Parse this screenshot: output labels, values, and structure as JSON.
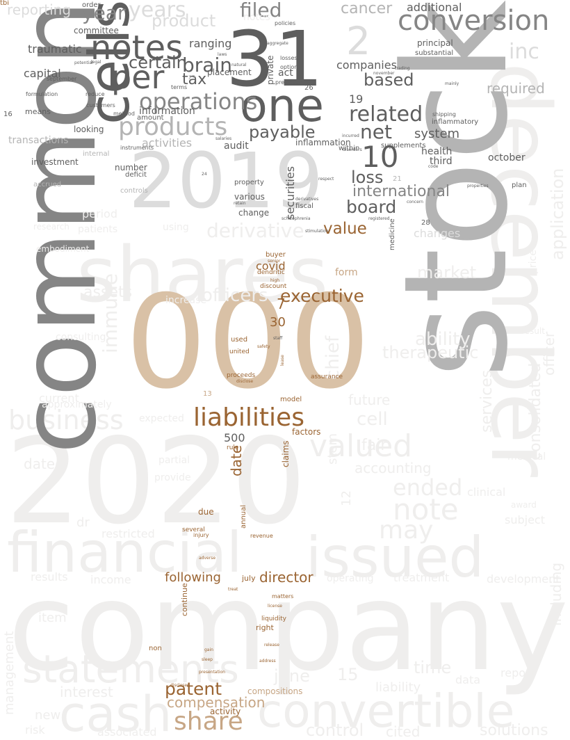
{
  "palette": {
    "background": "#ffffff",
    "faint": "#efeeed",
    "light": "#dcdcdc",
    "mid": "#b4b4b4",
    "dark": "#858585",
    "darker": "#5e5e5e",
    "tan": "#d9c1a6",
    "brown": "#9a6432",
    "light_brown": "#c7a685"
  },
  "words": [
    {
      "text": "company",
      "tone": "faint"
    },
    {
      "text": "2020",
      "tone": "faint"
    },
    {
      "text": "financial",
      "tone": "faint"
    },
    {
      "text": "issued",
      "tone": "faint"
    },
    {
      "text": "convertible",
      "tone": "faint"
    },
    {
      "text": "cash",
      "tone": "faint"
    },
    {
      "text": "statements",
      "tone": "faint"
    },
    {
      "text": "business",
      "tone": "faint"
    },
    {
      "text": "shares",
      "tone": "faint"
    },
    {
      "text": "december",
      "tone": "faint"
    },
    {
      "text": "stock",
      "tone": "mid"
    },
    {
      "text": "common",
      "tone": "dark"
    },
    {
      "text": "000",
      "tone": "tan"
    },
    {
      "text": "2019",
      "tone": "light"
    },
    {
      "text": "31",
      "tone": "darker"
    },
    {
      "text": "one",
      "tone": "darker"
    },
    {
      "text": "cells",
      "tone": "darker"
    },
    {
      "text": "notes",
      "tone": "darker"
    },
    {
      "text": "per",
      "tone": "darker"
    },
    {
      "text": "conversion",
      "tone": "dark"
    },
    {
      "text": "products",
      "tone": "mid"
    },
    {
      "text": "operations",
      "tone": "dark"
    },
    {
      "text": "brain",
      "tone": "darker"
    },
    {
      "text": "certain",
      "tone": "darker"
    },
    {
      "text": "tax",
      "tone": "darker"
    },
    {
      "text": "payable",
      "tone": "darker"
    },
    {
      "text": "related",
      "tone": "darker"
    },
    {
      "text": "10",
      "tone": "darker"
    },
    {
      "text": "net",
      "tone": "darker"
    },
    {
      "text": "loss",
      "tone": "darker"
    },
    {
      "text": "board",
      "tone": "darker"
    },
    {
      "text": "value",
      "tone": "brown"
    },
    {
      "text": "liabilities",
      "tone": "brown"
    },
    {
      "text": "executive",
      "tone": "brown"
    },
    {
      "text": "patent",
      "tone": "brown"
    },
    {
      "text": "director",
      "tone": "brown"
    },
    {
      "text": "share",
      "tone": "light_brown"
    },
    {
      "text": "compensation",
      "tone": "light_brown"
    },
    {
      "text": "following",
      "tone": "brown"
    },
    {
      "text": "date",
      "tone": "brown"
    },
    {
      "text": "500",
      "tone": "darker"
    },
    {
      "text": "covid",
      "tone": "brown"
    },
    {
      "text": "30",
      "tone": "brown"
    },
    {
      "text": "7",
      "tone": "brown"
    },
    {
      "text": "system",
      "tone": "darker"
    },
    {
      "text": "companies",
      "tone": "darker"
    },
    {
      "text": "based",
      "tone": "darker"
    },
    {
      "text": "international",
      "tone": "dark"
    },
    {
      "text": "securities",
      "tone": "darker"
    },
    {
      "text": "filed",
      "tone": "dark"
    },
    {
      "text": "cancer",
      "tone": "mid"
    },
    {
      "text": "notes",
      "tone": "faint"
    },
    {
      "text": "2",
      "tone": "light"
    },
    {
      "text": "inc",
      "tone": "light"
    },
    {
      "text": "required",
      "tone": "mid"
    },
    {
      "text": "october",
      "tone": "darker"
    },
    {
      "text": "health",
      "tone": "darker"
    },
    {
      "text": "third",
      "tone": "darker"
    },
    {
      "text": "19",
      "tone": "darker"
    },
    {
      "text": "traumatic",
      "tone": "darker"
    },
    {
      "text": "capital",
      "tone": "darker"
    },
    {
      "text": "year",
      "tone": "dark"
    },
    {
      "text": "years",
      "tone": "light"
    },
    {
      "text": "product",
      "tone": "light"
    },
    {
      "text": "ranging",
      "tone": "darker"
    },
    {
      "text": "placement",
      "tone": "darker"
    },
    {
      "text": "act",
      "tone": "darker"
    },
    {
      "text": "information",
      "tone": "darker"
    },
    {
      "text": "activities",
      "tone": "mid"
    },
    {
      "text": "audit",
      "tone": "darker"
    },
    {
      "text": "inflammation",
      "tone": "darker"
    },
    {
      "text": "various",
      "tone": "darker"
    },
    {
      "text": "change",
      "tone": "darker"
    },
    {
      "text": "property",
      "tone": "darker"
    },
    {
      "text": "number",
      "tone": "darker"
    },
    {
      "text": "investment",
      "tone": "darker"
    },
    {
      "text": "transactions",
      "tone": "mid"
    },
    {
      "text": "looking",
      "tone": "darker"
    },
    {
      "text": "means",
      "tone": "darker"
    },
    {
      "text": "committee",
      "tone": "darker"
    },
    {
      "text": "principal",
      "tone": "darker"
    },
    {
      "text": "additional",
      "tone": "darker"
    },
    {
      "text": "reporting",
      "tone": "light"
    },
    {
      "text": "derivative",
      "tone": "faint"
    },
    {
      "text": "immune",
      "tone": "faint"
    },
    {
      "text": "chief",
      "tone": "faint"
    },
    {
      "text": "officers",
      "tone": "faint"
    },
    {
      "text": "market",
      "tone": "faint"
    },
    {
      "text": "assets",
      "tone": "faint"
    },
    {
      "text": "valued",
      "tone": "faint"
    },
    {
      "text": "note",
      "tone": "faint"
    },
    {
      "text": "ended",
      "tone": "faint"
    },
    {
      "text": "may",
      "tone": "faint"
    },
    {
      "text": "therapeutic",
      "tone": "faint"
    },
    {
      "text": "ability",
      "tone": "faint"
    },
    {
      "text": "fair",
      "tone": "faint"
    },
    {
      "text": "cell",
      "tone": "faint"
    },
    {
      "text": "future",
      "tone": "faint"
    },
    {
      "text": "accounting",
      "tone": "faint"
    },
    {
      "text": "claims",
      "tone": "brown"
    },
    {
      "text": "factors",
      "tone": "brown"
    },
    {
      "text": "model",
      "tone": "brown"
    },
    {
      "text": "used",
      "tone": "brown"
    },
    {
      "text": "united",
      "tone": "brown"
    },
    {
      "text": "proceeds",
      "tone": "brown"
    },
    {
      "text": "assurance",
      "tone": "brown"
    },
    {
      "text": "form",
      "tone": "light_brown"
    },
    {
      "text": "buyer",
      "tone": "brown"
    },
    {
      "text": "dendritic",
      "tone": "brown"
    },
    {
      "text": "discount",
      "tone": "brown"
    },
    {
      "text": "due",
      "tone": "brown"
    },
    {
      "text": "several",
      "tone": "brown"
    },
    {
      "text": "injury",
      "tone": "brown"
    },
    {
      "text": "annual",
      "tone": "brown"
    },
    {
      "text": "july",
      "tone": "brown"
    },
    {
      "text": "continue",
      "tone": "brown"
    },
    {
      "text": "right",
      "tone": "brown"
    },
    {
      "text": "non",
      "tone": "brown"
    },
    {
      "text": "activity",
      "tone": "brown"
    },
    {
      "text": "compositions",
      "tone": "light_brown"
    },
    {
      "text": "liquidity",
      "tone": "brown"
    },
    {
      "text": "matters",
      "tone": "brown"
    },
    {
      "text": "revenue",
      "tone": "brown"
    },
    {
      "text": "adverse",
      "tone": "brown"
    },
    {
      "text": "rule",
      "tone": "brown"
    },
    {
      "text": "13",
      "tone": "light_brown"
    },
    {
      "text": "services",
      "tone": "faint"
    },
    {
      "text": "consolidated",
      "tone": "faint"
    },
    {
      "text": "officer",
      "tone": "faint"
    },
    {
      "text": "application",
      "tone": "faint"
    },
    {
      "text": "including",
      "tone": "faint"
    },
    {
      "text": "management",
      "tone": "faint"
    },
    {
      "text": "interest",
      "tone": "faint"
    },
    {
      "text": "new",
      "tone": "faint"
    },
    {
      "text": "risk",
      "tone": "faint"
    },
    {
      "text": "associated",
      "tone": "faint"
    },
    {
      "text": "control",
      "tone": "faint"
    },
    {
      "text": "cited",
      "tone": "faint"
    },
    {
      "text": "solutions",
      "tone": "faint"
    },
    {
      "text": "june",
      "tone": "faint"
    },
    {
      "text": "15",
      "tone": "faint"
    },
    {
      "text": "time",
      "tone": "faint"
    },
    {
      "text": "liability",
      "tone": "faint"
    },
    {
      "text": "data",
      "tone": "faint"
    },
    {
      "text": "report",
      "tone": "faint"
    },
    {
      "text": "results",
      "tone": "faint"
    },
    {
      "text": "income",
      "tone": "faint"
    },
    {
      "text": "item",
      "tone": "faint"
    },
    {
      "text": "restricted",
      "tone": "faint"
    },
    {
      "text": "dated",
      "tone": "faint"
    },
    {
      "text": "dr",
      "tone": "faint"
    },
    {
      "text": "provide",
      "tone": "faint"
    },
    {
      "text": "partial",
      "tone": "faint"
    },
    {
      "text": "subject",
      "tone": "faint"
    },
    {
      "text": "clinical",
      "tone": "faint"
    },
    {
      "text": "treatment",
      "tone": "faint"
    },
    {
      "text": "development",
      "tone": "faint"
    },
    {
      "text": "operating",
      "tone": "faint"
    },
    {
      "text": "expected",
      "tone": "faint"
    },
    {
      "text": "current",
      "tone": "faint"
    },
    {
      "text": "approximately",
      "tone": "faint"
    },
    {
      "text": "consulting",
      "tone": "faint"
    },
    {
      "text": "increase",
      "tone": "faint"
    },
    {
      "text": "patients",
      "tone": "faint"
    },
    {
      "text": "period",
      "tone": "faint"
    },
    {
      "text": "using",
      "tone": "faint"
    },
    {
      "text": "research",
      "tone": "faint"
    },
    {
      "text": "embodiment",
      "tone": "faint"
    },
    {
      "text": "stem",
      "tone": "faint"
    },
    {
      "text": "12",
      "tone": "faint"
    },
    {
      "text": "medical",
      "tone": "faint"
    },
    {
      "text": "award",
      "tone": "faint"
    },
    {
      "text": "result",
      "tone": "faint"
    },
    {
      "text": "price",
      "tone": "faint"
    },
    {
      "text": "plan",
      "tone": "darker"
    },
    {
      "text": "28",
      "tone": "darker"
    },
    {
      "text": "changes",
      "tone": "light"
    },
    {
      "text": "medicine",
      "tone": "darker"
    },
    {
      "text": "fiscal",
      "tone": "darker"
    },
    {
      "text": "supplements",
      "tone": "darker"
    },
    {
      "text": "within",
      "tone": "darker"
    },
    {
      "text": "inflammatory",
      "tone": "darker"
    },
    {
      "text": "shipping",
      "tone": "darker"
    },
    {
      "text": "substantial",
      "tone": "darker"
    },
    {
      "text": "mainly",
      "tone": "darker"
    },
    {
      "text": "private",
      "tone": "darker"
    },
    {
      "text": "option",
      "tone": "darker"
    },
    {
      "text": "previously",
      "tone": "darker"
    },
    {
      "text": "losses",
      "tone": "darker"
    },
    {
      "text": "aggregate",
      "tone": "darker"
    },
    {
      "text": "policies",
      "tone": "darker"
    },
    {
      "text": "terms",
      "tone": "darker"
    },
    {
      "text": "natural",
      "tone": "darker"
    },
    {
      "text": "laws",
      "tone": "darker"
    },
    {
      "text": "amount",
      "tone": "darker"
    },
    {
      "text": "method",
      "tone": "darker"
    },
    {
      "text": "customers",
      "tone": "darker"
    },
    {
      "text": "reduce",
      "tone": "darker"
    },
    {
      "text": "formulation",
      "tone": "darker"
    },
    {
      "text": "september",
      "tone": "darker"
    },
    {
      "text": "potential",
      "tone": "darker"
    },
    {
      "text": "legal",
      "tone": "darker"
    },
    {
      "text": "order",
      "tone": "darker"
    },
    {
      "text": "internal",
      "tone": "mid"
    },
    {
      "text": "instruments",
      "tone": "darker"
    },
    {
      "text": "deficit",
      "tone": "darker"
    },
    {
      "text": "controls",
      "tone": "mid"
    },
    {
      "text": "accrued",
      "tone": "mid"
    },
    {
      "text": "22",
      "tone": "mid"
    },
    {
      "text": "26",
      "tone": "darker"
    },
    {
      "text": "16",
      "tone": "darker"
    },
    {
      "text": "21",
      "tone": "mid"
    },
    {
      "text": "24",
      "tone": "darker"
    },
    {
      "text": "salaries",
      "tone": "darker"
    },
    {
      "text": "retain",
      "tone": "darker"
    },
    {
      "text": "respect",
      "tone": "darker"
    },
    {
      "text": "derivatives",
      "tone": "darker"
    },
    {
      "text": "schizophrenia",
      "tone": "darker"
    },
    {
      "text": "stimulation",
      "tone": "darker"
    },
    {
      "text": "registered",
      "tone": "darker"
    },
    {
      "text": "concern",
      "tone": "darker"
    },
    {
      "text": "incurred",
      "tone": "darker"
    },
    {
      "text": "disorders",
      "tone": "darker"
    },
    {
      "text": "november",
      "tone": "darker"
    },
    {
      "text": "trading",
      "tone": "darker"
    },
    {
      "text": "code",
      "tone": "darker"
    },
    {
      "text": "properties",
      "tone": "darker"
    },
    {
      "text": "staff",
      "tone": "darker"
    },
    {
      "text": "safety",
      "tone": "brown"
    },
    {
      "text": "disclose",
      "tone": "brown"
    },
    {
      "text": "lease",
      "tone": "brown"
    },
    {
      "text": "license",
      "tone": "brown"
    },
    {
      "text": "gain",
      "tone": "brown"
    },
    {
      "text": "sleep",
      "tone": "brown"
    },
    {
      "text": "presentation",
      "tone": "brown"
    },
    {
      "text": "address",
      "tone": "brown"
    },
    {
      "text": "release",
      "tone": "brown"
    },
    {
      "text": "disclosed",
      "tone": "brown"
    },
    {
      "text": "treat",
      "tone": "brown"
    },
    {
      "text": "high",
      "tone": "brown"
    },
    {
      "text": "senior",
      "tone": "brown"
    },
    {
      "text": "tbi",
      "tone": "brown"
    }
  ]
}
